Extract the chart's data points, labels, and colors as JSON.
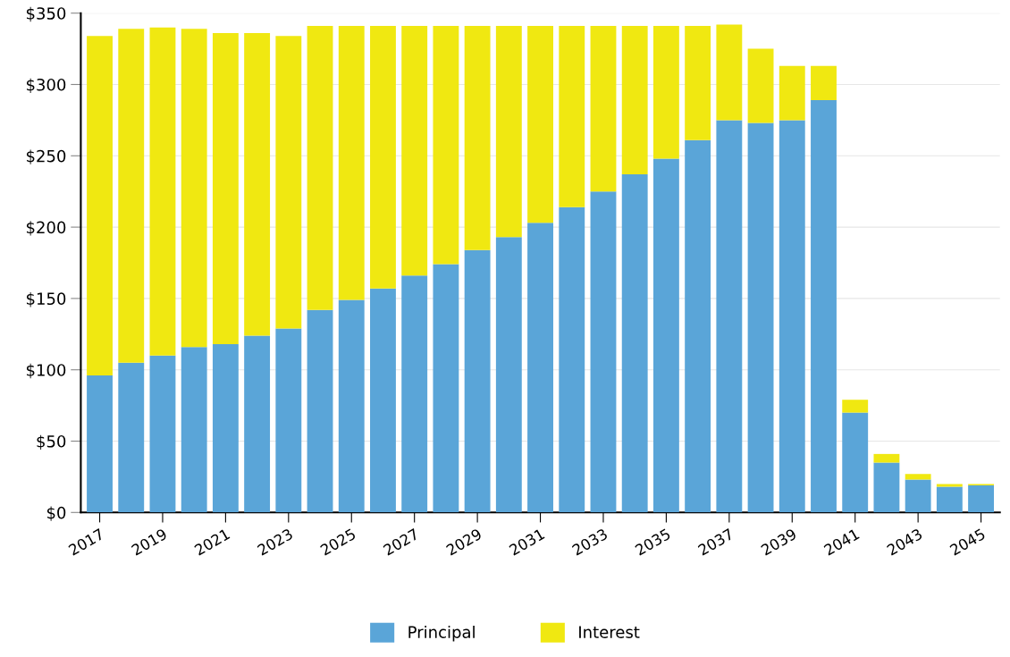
{
  "chart_data": {
    "type": "bar",
    "stacked": true,
    "categories": [
      "2017",
      null,
      "2019",
      null,
      "2021",
      null,
      "2023",
      null,
      "2025",
      null,
      "2027",
      null,
      "2029",
      null,
      "2031",
      null,
      "2033",
      null,
      "2035",
      null,
      "2037",
      null,
      "2039",
      null,
      "2041",
      null,
      "2043",
      null,
      "2045"
    ],
    "series": [
      {
        "name": "Principal",
        "color": "#5aa5d8",
        "values": [
          96,
          105,
          110,
          116,
          118,
          124,
          129,
          142,
          149,
          157,
          166,
          174,
          184,
          193,
          203,
          214,
          225,
          237,
          248,
          261,
          275,
          273,
          275,
          289,
          70,
          35,
          23,
          18,
          19
        ]
      },
      {
        "name": "Interest",
        "color": "#f0e811",
        "values": [
          238,
          234,
          230,
          223,
          218,
          212,
          205,
          199,
          192,
          184,
          175,
          167,
          157,
          148,
          138,
          127,
          116,
          104,
          93,
          80,
          67,
          52,
          38,
          24,
          9,
          6,
          4,
          2,
          1
        ]
      }
    ],
    "ylim": [
      0,
      350
    ],
    "yticks": [
      {
        "value": 0,
        "label": "$0"
      },
      {
        "value": 50,
        "label": "$50"
      },
      {
        "value": 100,
        "label": "$100"
      },
      {
        "value": 150,
        "label": "$150"
      },
      {
        "value": 200,
        "label": "$200"
      },
      {
        "value": 250,
        "label": "$250"
      },
      {
        "value": 300,
        "label": "$300"
      },
      {
        "value": 350,
        "label": "$350"
      }
    ],
    "grid": "y",
    "legend": "bottom"
  }
}
